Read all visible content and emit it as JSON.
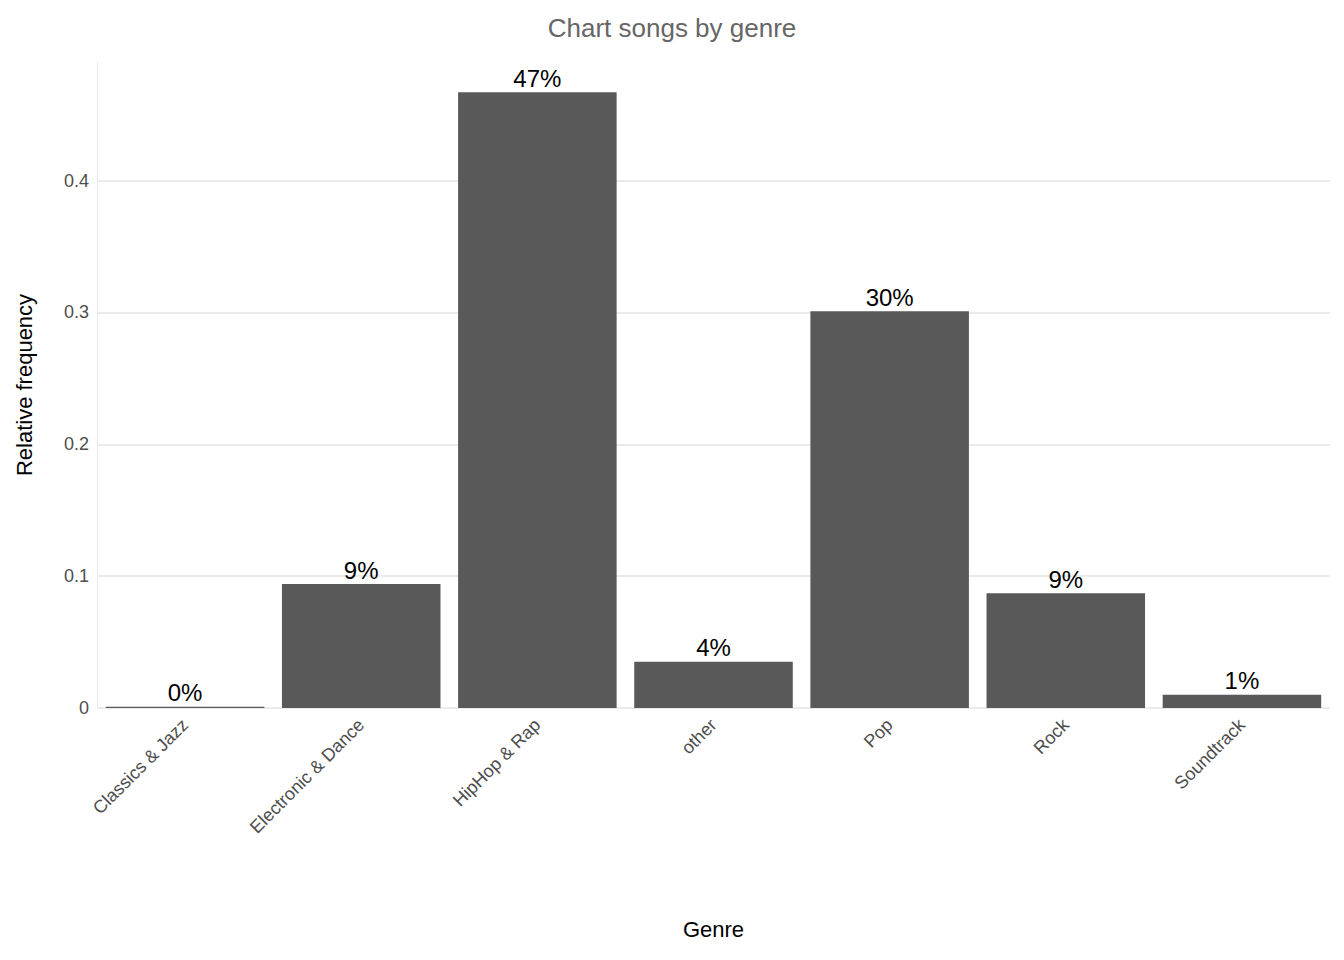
{
  "chart_data": {
    "type": "bar",
    "title": "Chart songs by genre",
    "x_label": "Genre",
    "y_label": "Relative frequency",
    "categories": [
      "Classics & Jazz",
      "Electronic & Dance",
      "HipHop & Rap",
      "other",
      "Pop",
      "Rock",
      "Soundtrack"
    ],
    "values": [
      0.001,
      0.094,
      0.467,
      0.035,
      0.301,
      0.087,
      0.01
    ],
    "value_labels": [
      "0%",
      "9%",
      "47%",
      "4%",
      "30%",
      "9%",
      "1%"
    ],
    "data_labels": true,
    "color": "#595959",
    "ylim": [
      0,
      0.49
    ],
    "yticks": [
      0,
      0.1,
      0.2,
      0.3,
      0.4
    ],
    "grid": true
  }
}
